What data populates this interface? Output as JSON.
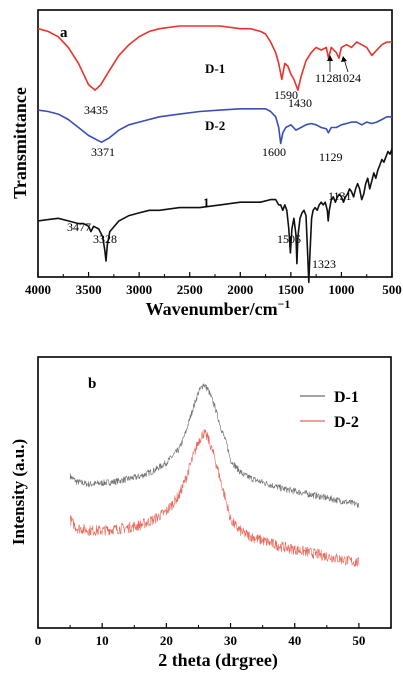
{
  "chart_data": [
    {
      "type": "line",
      "panel_label": "a",
      "xlabel": "Wavenumber/cm",
      "xlabel_superscript": "−1",
      "ylabel": "Transmittance",
      "xlim": [
        4000,
        500
      ],
      "x_reversed": true,
      "y_ticks_shown": false,
      "x_ticks": [
        "4000",
        "3500",
        "3000",
        "2500",
        "2000",
        "1500",
        "1000",
        "500"
      ],
      "series": [
        {
          "name": "D-1",
          "color": "#e8332a",
          "points": [
            [
              4000,
              0.93
            ],
            [
              3900,
              0.92
            ],
            [
              3800,
              0.9
            ],
            [
              3700,
              0.86
            ],
            [
              3600,
              0.8
            ],
            [
              3500,
              0.72
            ],
            [
              3435,
              0.7
            ],
            [
              3380,
              0.72
            ],
            [
              3300,
              0.77
            ],
            [
              3200,
              0.83
            ],
            [
              3100,
              0.87
            ],
            [
              3000,
              0.9
            ],
            [
              2900,
              0.92
            ],
            [
              2800,
              0.93
            ],
            [
              2600,
              0.94
            ],
            [
              2400,
              0.94
            ],
            [
              2200,
              0.94
            ],
            [
              2000,
              0.93
            ],
            [
              1900,
              0.93
            ],
            [
              1800,
              0.92
            ],
            [
              1750,
              0.91
            ],
            [
              1700,
              0.88
            ],
            [
              1650,
              0.84
            ],
            [
              1620,
              0.8
            ],
            [
              1590,
              0.74
            ],
            [
              1560,
              0.8
            ],
            [
              1530,
              0.79
            ],
            [
              1500,
              0.76
            ],
            [
              1470,
              0.74
            ],
            [
              1430,
              0.7
            ],
            [
              1400,
              0.75
            ],
            [
              1350,
              0.81
            ],
            [
              1300,
              0.84
            ],
            [
              1250,
              0.86
            ],
            [
              1200,
              0.85
            ],
            [
              1150,
              0.86
            ],
            [
              1128,
              0.82
            ],
            [
              1100,
              0.86
            ],
            [
              1050,
              0.84
            ],
            [
              1024,
              0.82
            ],
            [
              1000,
              0.86
            ],
            [
              950,
              0.87
            ],
            [
              900,
              0.86
            ],
            [
              850,
              0.88
            ],
            [
              800,
              0.87
            ],
            [
              750,
              0.86
            ],
            [
              700,
              0.83
            ],
            [
              650,
              0.85
            ],
            [
              600,
              0.87
            ],
            [
              550,
              0.88
            ],
            [
              500,
              0.88
            ]
          ]
        },
        {
          "name": "D-2",
          "color": "#3a4fb5",
          "points": [
            [
              4000,
              0.625
            ],
            [
              3900,
              0.62
            ],
            [
              3800,
              0.61
            ],
            [
              3700,
              0.59
            ],
            [
              3600,
              0.56
            ],
            [
              3500,
              0.53
            ],
            [
              3400,
              0.51
            ],
            [
              3371,
              0.505
            ],
            [
              3300,
              0.52
            ],
            [
              3200,
              0.55
            ],
            [
              3100,
              0.57
            ],
            [
              3000,
              0.58
            ],
            [
              2800,
              0.6
            ],
            [
              2600,
              0.61
            ],
            [
              2400,
              0.62
            ],
            [
              2200,
              0.625
            ],
            [
              2000,
              0.63
            ],
            [
              1800,
              0.63
            ],
            [
              1750,
              0.63
            ],
            [
              1700,
              0.62
            ],
            [
              1650,
              0.6
            ],
            [
              1620,
              0.56
            ],
            [
              1600,
              0.5
            ],
            [
              1580,
              0.54
            ],
            [
              1550,
              0.56
            ],
            [
              1500,
              0.57
            ],
            [
              1450,
              0.55
            ],
            [
              1400,
              0.56
            ],
            [
              1350,
              0.57
            ],
            [
              1300,
              0.575
            ],
            [
              1250,
              0.57
            ],
            [
              1200,
              0.56
            ],
            [
              1150,
              0.555
            ],
            [
              1129,
              0.54
            ],
            [
              1100,
              0.56
            ],
            [
              1050,
              0.56
            ],
            [
              1000,
              0.57
            ],
            [
              950,
              0.575
            ],
            [
              900,
              0.58
            ],
            [
              850,
              0.58
            ],
            [
              800,
              0.57
            ],
            [
              750,
              0.58
            ],
            [
              700,
              0.575
            ],
            [
              650,
              0.58
            ],
            [
              600,
              0.59
            ],
            [
              550,
              0.6
            ],
            [
              500,
              0.6
            ]
          ]
        },
        {
          "name": "1",
          "color": "#111111",
          "points": [
            [
              4000,
              0.21
            ],
            [
              3900,
              0.215
            ],
            [
              3800,
              0.22
            ],
            [
              3700,
              0.21
            ],
            [
              3600,
              0.2
            ],
            [
              3550,
              0.2
            ],
            [
              3500,
              0.19
            ],
            [
              3477,
              0.17
            ],
            [
              3450,
              0.19
            ],
            [
              3400,
              0.18
            ],
            [
              3360,
              0.15
            ],
            [
              3340,
              0.1
            ],
            [
              3328,
              0.06
            ],
            [
              3315,
              0.12
            ],
            [
              3290,
              0.17
            ],
            [
              3200,
              0.21
            ],
            [
              3100,
              0.23
            ],
            [
              3000,
              0.24
            ],
            [
              2900,
              0.25
            ],
            [
              2800,
              0.25
            ],
            [
              2600,
              0.26
            ],
            [
              2400,
              0.26
            ],
            [
              2200,
              0.27
            ],
            [
              2000,
              0.28
            ],
            [
              1900,
              0.28
            ],
            [
              1800,
              0.28
            ],
            [
              1700,
              0.29
            ],
            [
              1650,
              0.29
            ],
            [
              1620,
              0.27
            ],
            [
              1600,
              0.27
            ],
            [
              1580,
              0.25
            ],
            [
              1560,
              0.27
            ],
            [
              1540,
              0.25
            ],
            [
              1520,
              0.18
            ],
            [
              1505,
              0.09
            ],
            [
              1490,
              0.18
            ],
            [
              1470,
              0.22
            ],
            [
              1450,
              0.16
            ],
            [
              1440,
              0.05
            ],
            [
              1430,
              0.15
            ],
            [
              1410,
              0.22
            ],
            [
              1390,
              0.24
            ],
            [
              1370,
              0.25
            ],
            [
              1350,
              0.23
            ],
            [
              1335,
              0.1
            ],
            [
              1323,
              -0.02
            ],
            [
              1310,
              0.1
            ],
            [
              1295,
              0.22
            ],
            [
              1280,
              0.25
            ],
            [
              1260,
              0.26
            ],
            [
              1240,
              0.25
            ],
            [
              1220,
              0.27
            ],
            [
              1200,
              0.28
            ],
            [
              1180,
              0.27
            ],
            [
              1160,
              0.28
            ],
            [
              1140,
              0.25
            ],
            [
              1131,
              0.21
            ],
            [
              1120,
              0.25
            ],
            [
              1100,
              0.29
            ],
            [
              1080,
              0.3
            ],
            [
              1060,
              0.28
            ],
            [
              1040,
              0.3
            ],
            [
              1020,
              0.31
            ],
            [
              1000,
              0.3
            ],
            [
              980,
              0.28
            ],
            [
              960,
              0.3
            ],
            [
              940,
              0.31
            ],
            [
              920,
              0.33
            ],
            [
              900,
              0.32
            ],
            [
              880,
              0.3
            ],
            [
              860,
              0.33
            ],
            [
              840,
              0.35
            ],
            [
              820,
              0.33
            ],
            [
              800,
              0.29
            ],
            [
              780,
              0.31
            ],
            [
              760,
              0.35
            ],
            [
              740,
              0.37
            ],
            [
              720,
              0.33
            ],
            [
              700,
              0.36
            ],
            [
              680,
              0.39
            ],
            [
              660,
              0.37
            ],
            [
              640,
              0.4
            ],
            [
              620,
              0.42
            ],
            [
              600,
              0.44
            ],
            [
              580,
              0.43
            ],
            [
              560,
              0.45
            ],
            [
              540,
              0.47
            ],
            [
              520,
              0.46
            ],
            [
              500,
              0.48
            ]
          ]
        }
      ],
      "annotations": {
        "D-1": [
          "3435",
          "1590",
          "1430",
          "1128",
          "1024"
        ],
        "D-2": [
          "3371",
          "1600",
          "1129"
        ],
        "1": [
          "3477",
          "3328",
          "1505",
          "1323",
          "1131"
        ]
      }
    },
    {
      "type": "line",
      "panel_label": "b",
      "xlabel": "2 theta (drgree)",
      "ylabel": "Intensity (a.u.)",
      "xlim": [
        0,
        55
      ],
      "x_ticks": [
        "0",
        "10",
        "20",
        "30",
        "40",
        "50"
      ],
      "y_ticks_shown": false,
      "legend_position": "top-right",
      "series": [
        {
          "name": "D-1",
          "color": "#6e6e6e",
          "points": [
            [
              5,
              0.56
            ],
            [
              6,
              0.54
            ],
            [
              8,
              0.53
            ],
            [
              10,
              0.535
            ],
            [
              12,
              0.54
            ],
            [
              14,
              0.55
            ],
            [
              16,
              0.56
            ],
            [
              18,
              0.58
            ],
            [
              20,
              0.61
            ],
            [
              22,
              0.66
            ],
            [
              23,
              0.72
            ],
            [
              24,
              0.8
            ],
            [
              25,
              0.87
            ],
            [
              25.8,
              0.9
            ],
            [
              26.5,
              0.88
            ],
            [
              27.5,
              0.82
            ],
            [
              28.5,
              0.74
            ],
            [
              29.5,
              0.67
            ],
            [
              30,
              0.62
            ],
            [
              31,
              0.59
            ],
            [
              32,
              0.565
            ],
            [
              34,
              0.545
            ],
            [
              36,
              0.53
            ],
            [
              38,
              0.515
            ],
            [
              40,
              0.505
            ],
            [
              42,
              0.495
            ],
            [
              44,
              0.485
            ],
            [
              46,
              0.475
            ],
            [
              48,
              0.465
            ],
            [
              50,
              0.455
            ]
          ]
        },
        {
          "name": "D-2",
          "color": "#e8685a",
          "points": [
            [
              5,
              0.4
            ],
            [
              6,
              0.37
            ],
            [
              8,
              0.36
            ],
            [
              10,
              0.36
            ],
            [
              12,
              0.365
            ],
            [
              14,
              0.37
            ],
            [
              16,
              0.38
            ],
            [
              18,
              0.4
            ],
            [
              20,
              0.43
            ],
            [
              22,
              0.49
            ],
            [
              23,
              0.55
            ],
            [
              24,
              0.62
            ],
            [
              25,
              0.69
            ],
            [
              25.8,
              0.72
            ],
            [
              26.5,
              0.7
            ],
            [
              27.5,
              0.63
            ],
            [
              28.5,
              0.54
            ],
            [
              29.5,
              0.45
            ],
            [
              30,
              0.4
            ],
            [
              31,
              0.37
            ],
            [
              32,
              0.35
            ],
            [
              34,
              0.33
            ],
            [
              36,
              0.315
            ],
            [
              38,
              0.3
            ],
            [
              40,
              0.29
            ],
            [
              42,
              0.28
            ],
            [
              44,
              0.27
            ],
            [
              46,
              0.26
            ],
            [
              48,
              0.25
            ],
            [
              50,
              0.24
            ]
          ]
        }
      ]
    }
  ]
}
